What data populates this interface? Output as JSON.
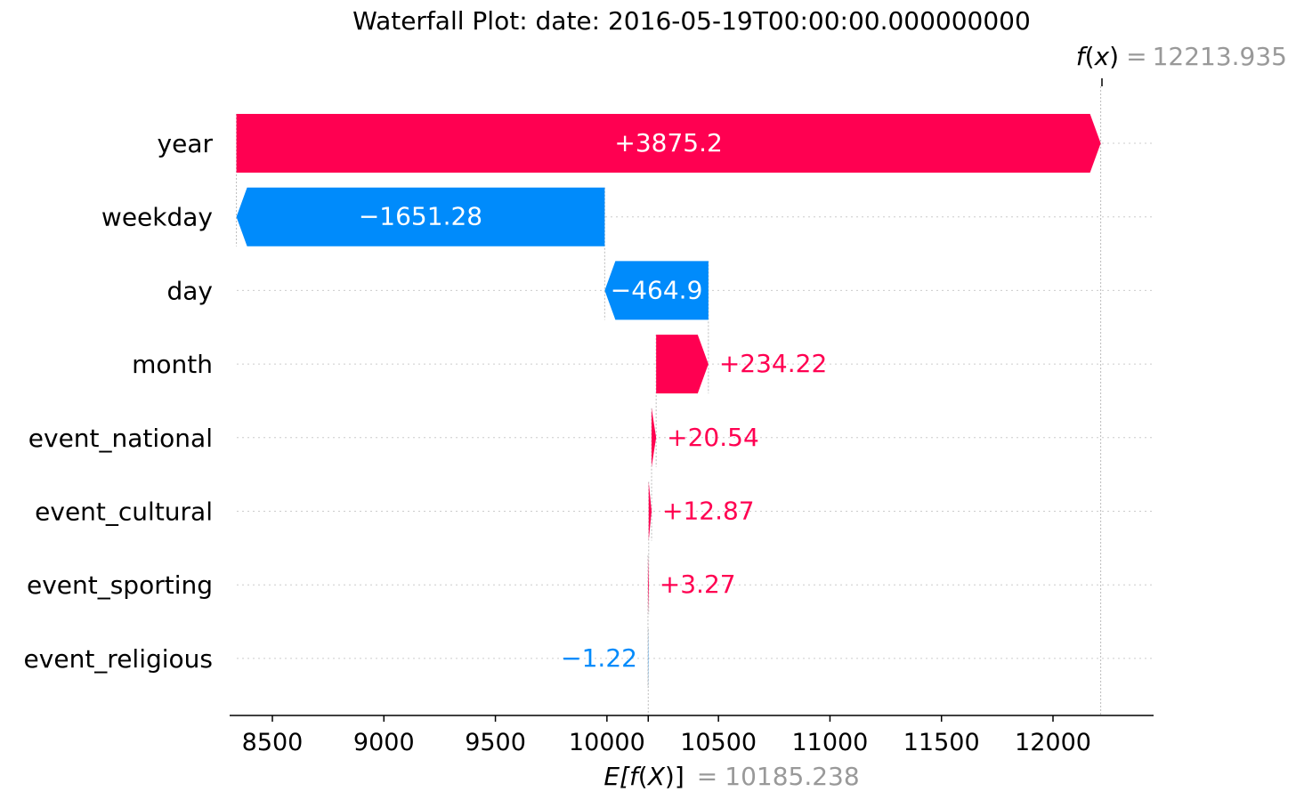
{
  "chart_data": {
    "type": "waterfall",
    "title": "Waterfall Plot:  date: 2016-05-19T00:00:00.000000000",
    "base_value": 10185.238,
    "output_value": 12213.935,
    "base_label": {
      "prefix": "E[",
      "fn": "f",
      "arg": "X",
      "suffix": "]",
      "eq": "=",
      "value": "10185.238"
    },
    "output_label": {
      "fn": "f",
      "arg": "x",
      "eq": "=",
      "value": "12213.935"
    },
    "features": [
      {
        "name": "year",
        "value": 3875.2,
        "label": "+3875.2"
      },
      {
        "name": "weekday",
        "value": -1651.28,
        "label": "−1651.28"
      },
      {
        "name": "day",
        "value": -464.9,
        "label": "−464.9"
      },
      {
        "name": "month",
        "value": 234.22,
        "label": "+234.22"
      },
      {
        "name": "event_national",
        "value": 20.54,
        "label": "+20.54"
      },
      {
        "name": "event_cultural",
        "value": 12.87,
        "label": "+12.87"
      },
      {
        "name": "event_sporting",
        "value": 3.27,
        "label": "+3.27"
      },
      {
        "name": "event_religious",
        "value": -1.22,
        "label": "−1.22"
      }
    ],
    "xticks": [
      8500,
      9000,
      9500,
      10000,
      10500,
      11000,
      11500,
      12000
    ],
    "xlim": [
      8300,
      12450
    ],
    "colors": {
      "positive": "#ff0051",
      "negative": "#008bfb",
      "value_gray": "#999999"
    }
  }
}
